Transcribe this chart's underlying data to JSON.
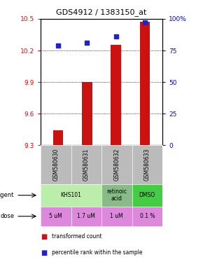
{
  "title": "GDS4912 / 1383150_at",
  "samples": [
    "GSM580630",
    "GSM580631",
    "GSM580632",
    "GSM580633"
  ],
  "bar_values": [
    9.44,
    9.9,
    10.25,
    10.47
  ],
  "bar_bottom": 9.3,
  "percentile_values": [
    79,
    81,
    86,
    97
  ],
  "ylim_left": [
    9.3,
    10.5
  ],
  "ylim_right": [
    0,
    100
  ],
  "yticks_left": [
    9.3,
    9.6,
    9.9,
    10.2,
    10.5
  ],
  "yticks_right": [
    0,
    25,
    50,
    75,
    100
  ],
  "bar_color": "#cc1111",
  "dot_color": "#2222cc",
  "agent_spans": [
    [
      0,
      2,
      "KHS101",
      "#bbeeaa"
    ],
    [
      2,
      3,
      "retinoic\nacid",
      "#88bb88"
    ],
    [
      3,
      4,
      "DMSO",
      "#44cc44"
    ]
  ],
  "dose_labels": [
    "5 uM",
    "1.7 uM",
    "1 uM",
    "0.1 %"
  ],
  "dose_color": "#dd88dd",
  "sample_bg_color": "#bbbbbb",
  "legend_bar_label": "transformed count",
  "legend_dot_label": "percentile rank within the sample"
}
